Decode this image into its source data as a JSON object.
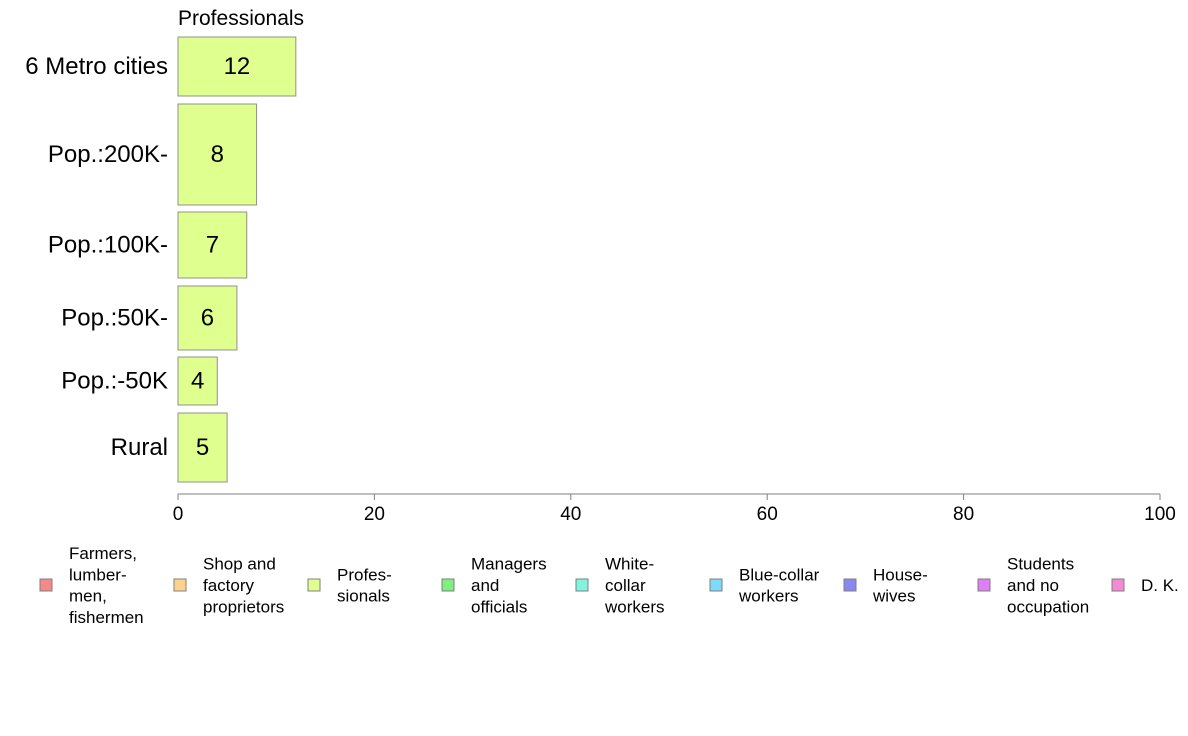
{
  "chart_data": {
    "type": "bar",
    "orientation": "horizontal",
    "title": "Professionals",
    "categories": [
      "6 Metro cities",
      "Pop.:200K-",
      "Pop.:100K-",
      "Pop.:50K-",
      "Pop.:-50K",
      "Rural"
    ],
    "values": [
      12,
      8,
      7,
      6,
      4,
      5
    ],
    "xlim": [
      0,
      100
    ],
    "xticks": [
      0,
      20,
      40,
      60,
      80,
      100
    ],
    "bar_color": "#dfff8f",
    "grid": false,
    "legend_position": "bottom",
    "legend": [
      {
        "label": "Farmers,\nlumber-\nmen,\nfishermen",
        "color": "#f4898a"
      },
      {
        "label": "Shop and\nfactory\nproprietors",
        "color": "#fcd28d"
      },
      {
        "label": "Profes-\nsionals",
        "color": "#dfff8f"
      },
      {
        "label": "Managers\nand\nofficials",
        "color": "#7ff07f"
      },
      {
        "label": "White-\ncollar\nworkers",
        "color": "#7ff5df"
      },
      {
        "label": "Blue-collar\nworkers",
        "color": "#7fd9f8"
      },
      {
        "label": "House-\nwives",
        "color": "#8888f0"
      },
      {
        "label": "Students\nand no\noccupation",
        "color": "#df7ff8"
      },
      {
        "label": "D. K.",
        "color": "#f48ad3"
      }
    ]
  }
}
